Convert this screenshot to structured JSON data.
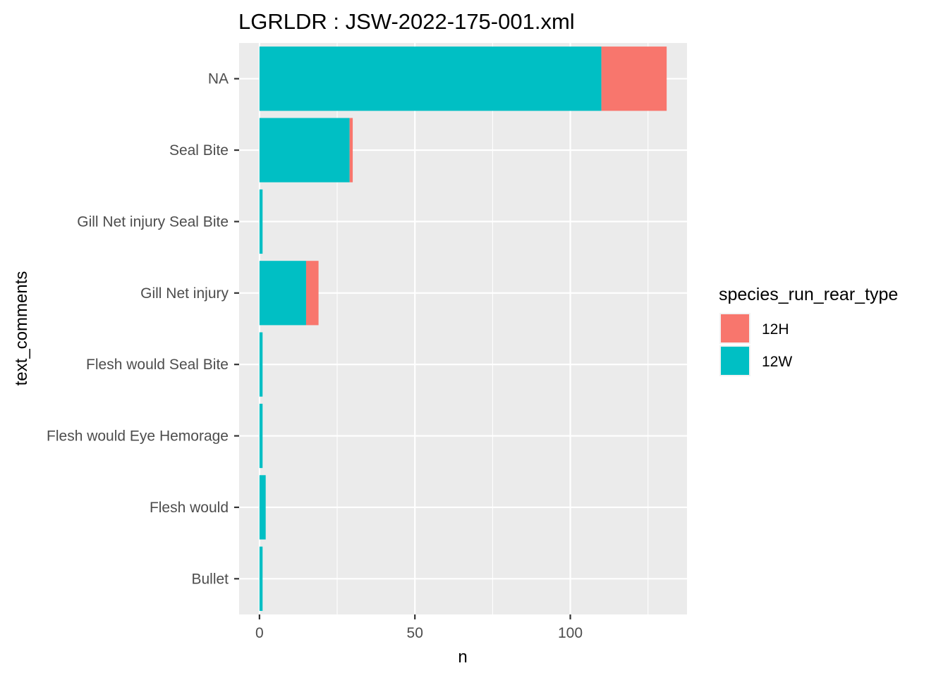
{
  "chart_data": {
    "type": "bar",
    "orientation": "horizontal",
    "stacked": true,
    "title": "LGRLDR : JSW-2022-175-001.xml",
    "xlabel": "n",
    "ylabel": "text_comments",
    "categories": [
      "NA",
      "Seal Bite",
      "Gill Net injury Seal Bite",
      "Gill Net injury",
      "Flesh would Seal Bite",
      "Flesh would Eye Hemorage",
      "Flesh would",
      "Bullet"
    ],
    "series": [
      {
        "name": "12W",
        "color": "#00BFC4",
        "values": [
          110,
          29,
          1,
          15,
          1,
          1,
          2,
          1
        ]
      },
      {
        "name": "12H",
        "color": "#F8766D",
        "values": [
          21,
          1,
          0,
          4,
          0,
          0,
          0,
          0
        ]
      }
    ],
    "xlim": [
      -6.55,
      137.55
    ],
    "x_ticks": [
      0,
      50,
      100
    ],
    "x_minor_ticks": [
      25,
      75,
      125
    ],
    "grid": true,
    "panel_background": "#EBEBEB",
    "legend": {
      "title": "species_run_rear_type",
      "position": "right",
      "items": [
        {
          "label": "12H",
          "color": "#F8766D"
        },
        {
          "label": "12W",
          "color": "#00BFC4"
        }
      ]
    }
  }
}
